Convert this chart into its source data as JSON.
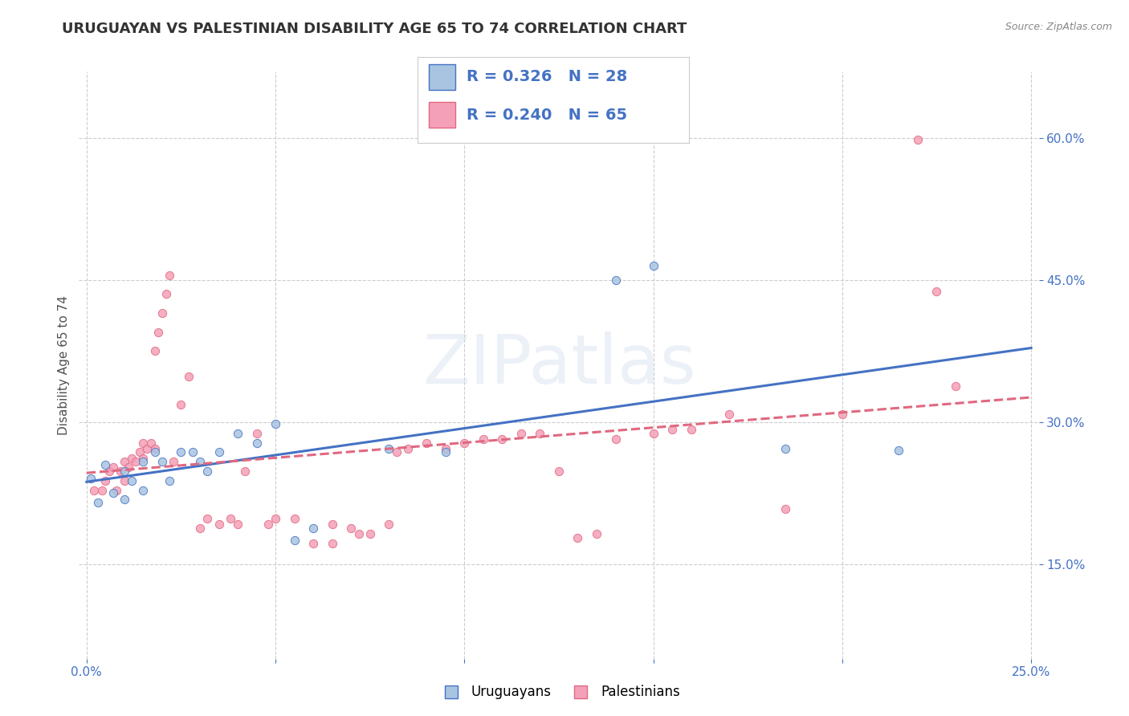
{
  "title": "URUGUAYAN VS PALESTINIAN DISABILITY AGE 65 TO 74 CORRELATION CHART",
  "source_text": "Source: ZipAtlas.com",
  "xlabel": "",
  "ylabel": "Disability Age 65 to 74",
  "xlim": [
    -0.002,
    0.252
  ],
  "ylim": [
    0.05,
    0.67
  ],
  "x_ticks": [
    0.0,
    0.05,
    0.1,
    0.15,
    0.2,
    0.25
  ],
  "y_ticks": [
    0.15,
    0.3,
    0.45,
    0.6
  ],
  "legend_r1": "R = 0.326",
  "legend_n1": "N = 28",
  "legend_r2": "R = 0.240",
  "legend_n2": "N = 65",
  "uruguayan_color": "#a8c4e0",
  "palestinian_color": "#f4a0b8",
  "uruguayan_line_color": "#4472c4",
  "palestinian_line_color": "#e06880",
  "watermark": "ZIPatlas",
  "uruguayan_points": [
    [
      0.001,
      0.24
    ],
    [
      0.003,
      0.215
    ],
    [
      0.005,
      0.255
    ],
    [
      0.007,
      0.225
    ],
    [
      0.01,
      0.248
    ],
    [
      0.01,
      0.218
    ],
    [
      0.012,
      0.238
    ],
    [
      0.015,
      0.258
    ],
    [
      0.015,
      0.228
    ],
    [
      0.018,
      0.268
    ],
    [
      0.02,
      0.258
    ],
    [
      0.022,
      0.238
    ],
    [
      0.025,
      0.268
    ],
    [
      0.028,
      0.268
    ],
    [
      0.03,
      0.258
    ],
    [
      0.032,
      0.248
    ],
    [
      0.035,
      0.268
    ],
    [
      0.04,
      0.288
    ],
    [
      0.045,
      0.278
    ],
    [
      0.05,
      0.298
    ],
    [
      0.055,
      0.175
    ],
    [
      0.06,
      0.188
    ],
    [
      0.08,
      0.272
    ],
    [
      0.095,
      0.268
    ],
    [
      0.14,
      0.45
    ],
    [
      0.15,
      0.465
    ],
    [
      0.185,
      0.272
    ],
    [
      0.215,
      0.27
    ]
  ],
  "palestinian_points": [
    [
      0.002,
      0.228
    ],
    [
      0.004,
      0.228
    ],
    [
      0.005,
      0.238
    ],
    [
      0.006,
      0.248
    ],
    [
      0.007,
      0.252
    ],
    [
      0.008,
      0.228
    ],
    [
      0.009,
      0.248
    ],
    [
      0.01,
      0.238
    ],
    [
      0.01,
      0.258
    ],
    [
      0.011,
      0.252
    ],
    [
      0.012,
      0.262
    ],
    [
      0.013,
      0.258
    ],
    [
      0.014,
      0.268
    ],
    [
      0.015,
      0.262
    ],
    [
      0.015,
      0.278
    ],
    [
      0.016,
      0.272
    ],
    [
      0.017,
      0.278
    ],
    [
      0.018,
      0.272
    ],
    [
      0.018,
      0.375
    ],
    [
      0.019,
      0.395
    ],
    [
      0.02,
      0.415
    ],
    [
      0.021,
      0.435
    ],
    [
      0.022,
      0.455
    ],
    [
      0.023,
      0.258
    ],
    [
      0.025,
      0.318
    ],
    [
      0.027,
      0.348
    ],
    [
      0.03,
      0.188
    ],
    [
      0.032,
      0.198
    ],
    [
      0.035,
      0.192
    ],
    [
      0.038,
      0.198
    ],
    [
      0.04,
      0.192
    ],
    [
      0.042,
      0.248
    ],
    [
      0.045,
      0.288
    ],
    [
      0.048,
      0.192
    ],
    [
      0.05,
      0.198
    ],
    [
      0.055,
      0.198
    ],
    [
      0.06,
      0.172
    ],
    [
      0.065,
      0.172
    ],
    [
      0.065,
      0.192
    ],
    [
      0.07,
      0.188
    ],
    [
      0.072,
      0.182
    ],
    [
      0.075,
      0.182
    ],
    [
      0.08,
      0.192
    ],
    [
      0.082,
      0.268
    ],
    [
      0.085,
      0.272
    ],
    [
      0.09,
      0.278
    ],
    [
      0.095,
      0.272
    ],
    [
      0.1,
      0.278
    ],
    [
      0.105,
      0.282
    ],
    [
      0.11,
      0.282
    ],
    [
      0.115,
      0.288
    ],
    [
      0.12,
      0.288
    ],
    [
      0.125,
      0.248
    ],
    [
      0.13,
      0.178
    ],
    [
      0.135,
      0.182
    ],
    [
      0.14,
      0.282
    ],
    [
      0.15,
      0.288
    ],
    [
      0.155,
      0.292
    ],
    [
      0.16,
      0.292
    ],
    [
      0.17,
      0.308
    ],
    [
      0.185,
      0.208
    ],
    [
      0.2,
      0.308
    ],
    [
      0.22,
      0.598
    ],
    [
      0.225,
      0.438
    ],
    [
      0.23,
      0.338
    ]
  ],
  "uruguayan_size_base": 55,
  "palestinian_size_base": 55,
  "grid_color": "#c8c8c8",
  "background_color": "#ffffff",
  "title_fontsize": 13,
  "axis_label_fontsize": 11,
  "tick_fontsize": 11,
  "legend_fontsize": 14
}
